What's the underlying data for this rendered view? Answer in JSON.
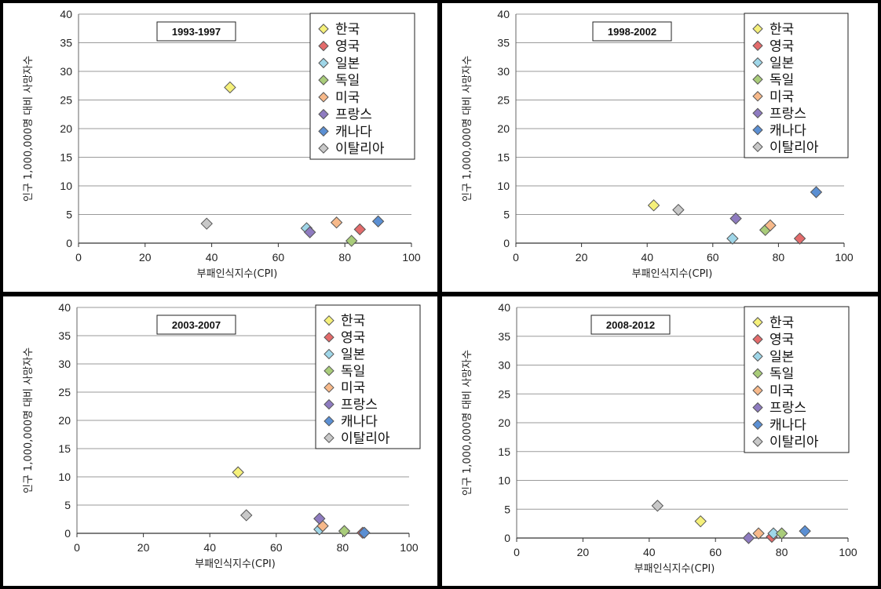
{
  "chart_data": [
    {
      "type": "scatter",
      "title": "1993-1997",
      "xlabel": "부패인식지수(CPI)",
      "ylabel": "인구 1,000,000명 대비 사망자수",
      "xlim": [
        0,
        100
      ],
      "ylim": [
        0,
        40
      ],
      "x_ticks": [
        "0",
        "20",
        "40",
        "60",
        "80",
        "100"
      ],
      "y_ticks": [
        "0",
        "5",
        "10",
        "15",
        "20",
        "25",
        "30",
        "35",
        "40"
      ],
      "legend_position": "top-right",
      "series": [
        {
          "name": "한국",
          "color": "#f5f07a",
          "x": 45.5,
          "y": 27.2
        },
        {
          "name": "영국",
          "color": "#e36b6b",
          "x": 84.5,
          "y": 2.4
        },
        {
          "name": "일본",
          "color": "#9fd6e8",
          "x": 68.5,
          "y": 2.6
        },
        {
          "name": "독일",
          "color": "#a9cc7a",
          "x": 82.0,
          "y": 0.4
        },
        {
          "name": "미국",
          "color": "#f7b98a",
          "x": 77.5,
          "y": 3.6
        },
        {
          "name": "프랑스",
          "color": "#8e7bc0",
          "x": 69.5,
          "y": 1.9
        },
        {
          "name": "캐나다",
          "color": "#5b8fd3",
          "x": 90.0,
          "y": 3.8
        },
        {
          "name": "이탈리아",
          "color": "#c8c8c8",
          "x": 38.5,
          "y": 3.4
        }
      ]
    },
    {
      "type": "scatter",
      "title": "1998-2002",
      "xlabel": "부패인식지수(CPI)",
      "ylabel": "인구 1,000,000명 대비 사망자수",
      "xlim": [
        0,
        100
      ],
      "ylim": [
        0,
        40
      ],
      "x_ticks": [
        "0",
        "20",
        "40",
        "60",
        "80",
        "100"
      ],
      "y_ticks": [
        "0",
        "5",
        "10",
        "15",
        "20",
        "25",
        "30",
        "35",
        "40"
      ],
      "legend_position": "top-right",
      "series": [
        {
          "name": "한국",
          "color": "#f5f07a",
          "x": 42.0,
          "y": 6.6
        },
        {
          "name": "영국",
          "color": "#e36b6b",
          "x": 86.5,
          "y": 0.8
        },
        {
          "name": "일본",
          "color": "#9fd6e8",
          "x": 66.0,
          "y": 0.8
        },
        {
          "name": "독일",
          "color": "#a9cc7a",
          "x": 76.0,
          "y": 2.3
        },
        {
          "name": "미국",
          "color": "#f7b98a",
          "x": 77.5,
          "y": 3.1
        },
        {
          "name": "프랑스",
          "color": "#8e7bc0",
          "x": 67.0,
          "y": 4.3
        },
        {
          "name": "캐나다",
          "color": "#5b8fd3",
          "x": 91.5,
          "y": 8.9
        },
        {
          "name": "이탈리아",
          "color": "#c8c8c8",
          "x": 49.5,
          "y": 5.8
        }
      ]
    },
    {
      "type": "scatter",
      "title": "2003-2007",
      "xlabel": "부패인식지수(CPI)",
      "ylabel": "인구 1,000,000명 대비 사망자수",
      "xlim": [
        0,
        100
      ],
      "ylim": [
        0,
        40
      ],
      "x_ticks": [
        "0",
        "20",
        "40",
        "60",
        "80",
        "100"
      ],
      "y_ticks": [
        "0",
        "5",
        "10",
        "15",
        "20",
        "25",
        "30",
        "35",
        "40"
      ],
      "legend_position": "top-right",
      "series": [
        {
          "name": "한국",
          "color": "#f5f07a",
          "x": 48.5,
          "y": 10.8
        },
        {
          "name": "영국",
          "color": "#e36b6b",
          "x": 86.0,
          "y": 0.1
        },
        {
          "name": "일본",
          "color": "#9fd6e8",
          "x": 73.0,
          "y": 0.7
        },
        {
          "name": "독일",
          "color": "#a9cc7a",
          "x": 80.5,
          "y": 0.4
        },
        {
          "name": "미국",
          "color": "#f7b98a",
          "x": 74.0,
          "y": 1.3
        },
        {
          "name": "프랑스",
          "color": "#8e7bc0",
          "x": 73.0,
          "y": 2.6
        },
        {
          "name": "캐나다",
          "color": "#5b8fd3",
          "x": 86.5,
          "y": 0.1
        },
        {
          "name": "이탈리아",
          "color": "#c8c8c8",
          "x": 51.0,
          "y": 3.2
        }
      ]
    },
    {
      "type": "scatter",
      "title": "2008-2012",
      "xlabel": "부패인식지수(CPI)",
      "ylabel": "인구 1,000,000명 대비 사망자수",
      "xlim": [
        0,
        100
      ],
      "ylim": [
        0,
        40
      ],
      "x_ticks": [
        "0",
        "20",
        "40",
        "60",
        "80",
        "100"
      ],
      "y_ticks": [
        "0",
        "5",
        "10",
        "15",
        "20",
        "25",
        "30",
        "35",
        "40"
      ],
      "legend_position": "top-right",
      "series": [
        {
          "name": "한국",
          "color": "#f5f07a",
          "x": 55.5,
          "y": 2.9
        },
        {
          "name": "영국",
          "color": "#e36b6b",
          "x": 77.0,
          "y": 0.2
        },
        {
          "name": "일본",
          "color": "#9fd6e8",
          "x": 77.5,
          "y": 0.8
        },
        {
          "name": "독일",
          "color": "#a9cc7a",
          "x": 80.0,
          "y": 0.8
        },
        {
          "name": "미국",
          "color": "#f7b98a",
          "x": 73.0,
          "y": 0.8
        },
        {
          "name": "프랑스",
          "color": "#8e7bc0",
          "x": 70.0,
          "y": 0.0
        },
        {
          "name": "캐나다",
          "color": "#5b8fd3",
          "x": 87.0,
          "y": 1.2
        },
        {
          "name": "이탈리아",
          "color": "#c8c8c8",
          "x": 42.5,
          "y": 5.6
        }
      ]
    }
  ]
}
